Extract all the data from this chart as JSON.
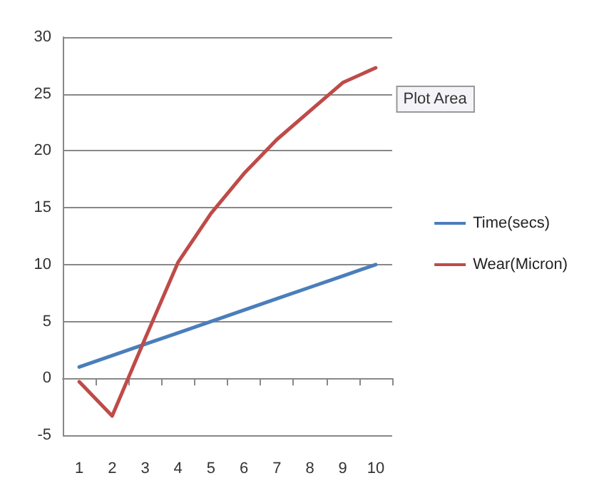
{
  "chart_data": {
    "type": "line",
    "categories": [
      "1",
      "2",
      "3",
      "4",
      "5",
      "6",
      "7",
      "8",
      "9",
      "10"
    ],
    "series": [
      {
        "name": "Time(secs)",
        "color": "#4a7ebb",
        "values": [
          1,
          2,
          3,
          4,
          5,
          6,
          7,
          8,
          9,
          10
        ]
      },
      {
        "name": "Wear(Micron)",
        "color": "#be4b48",
        "values": [
          -0.3,
          -3.3,
          3.5,
          10.2,
          14.5,
          18,
          21,
          23.5,
          26,
          27.3
        ]
      }
    ],
    "ylim": [
      -5,
      30
    ],
    "yticks": [
      -5,
      0,
      5,
      10,
      15,
      20,
      25,
      30
    ],
    "grid": "y",
    "legend": "right",
    "marker": "none",
    "line_style": "solid",
    "annotations": [
      "Plot Area"
    ]
  }
}
